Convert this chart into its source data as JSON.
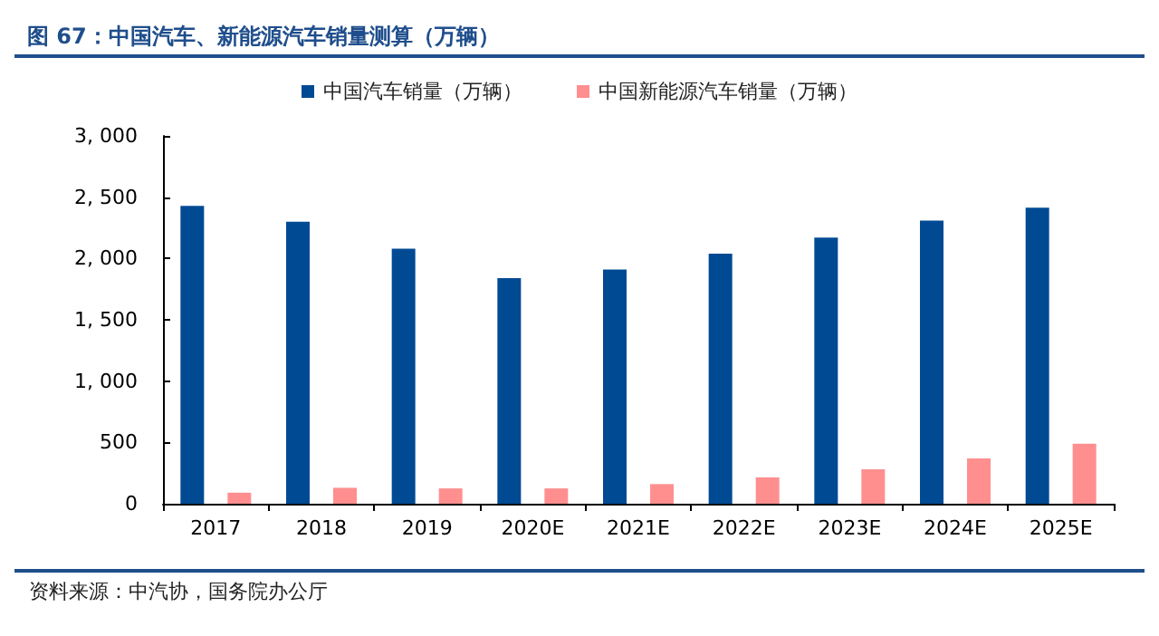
{
  "chart_data": {
    "type": "bar",
    "title": "图 67：中国汽车、新能源汽车销量测算（万辆）",
    "categories": [
      "2017",
      "2018",
      "2019",
      "2020E",
      "2021E",
      "2022E",
      "2023E",
      "2024E",
      "2025E"
    ],
    "series": [
      {
        "name": "中国汽车销量（万辆）",
        "color": "#004a94",
        "values": [
          2430,
          2300,
          2080,
          1840,
          1910,
          2040,
          2170,
          2310,
          2415
        ]
      },
      {
        "name": "中国新能源汽车销量（万辆）",
        "color": "#ff8f8f",
        "values": [
          90,
          130,
          125,
          125,
          160,
          215,
          280,
          370,
          490
        ]
      }
    ],
    "ylim": [
      0,
      3000
    ],
    "yticks": [
      {
        "value": 0,
        "label": "0"
      },
      {
        "value": 500,
        "label": "500"
      },
      {
        "value": 1000,
        "label": "1, 000"
      },
      {
        "value": 1500,
        "label": "1, 500"
      },
      {
        "value": 2000,
        "label": "2, 000"
      },
      {
        "value": 2500,
        "label": "2, 500"
      },
      {
        "value": 3000,
        "label": "3, 000"
      }
    ],
    "grid": false,
    "legend": "top",
    "annotations": [
      "资料来源：中汽协，国务院办公厅"
    ]
  }
}
